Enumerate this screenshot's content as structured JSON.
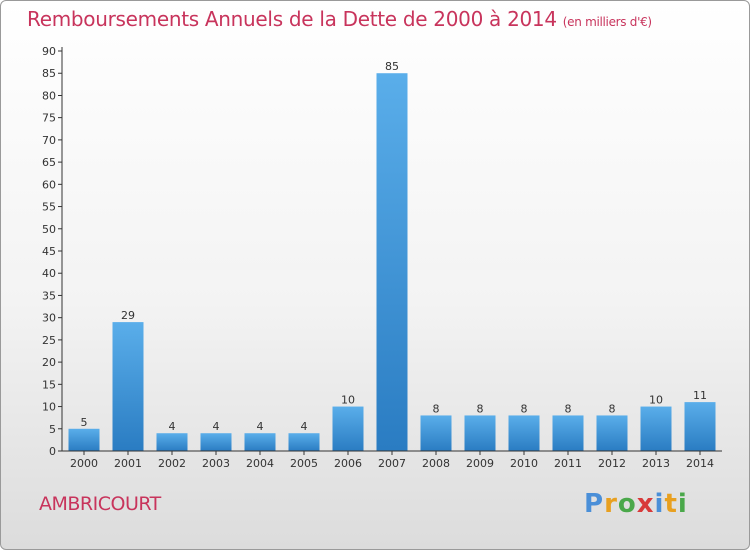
{
  "header": {
    "title": "Remboursements Annuels de la Dette de 2000 à 2014",
    "unit": "(en milliers d'€)"
  },
  "commune_name": "AMBRICOURT",
  "logo": {
    "letters": [
      "P",
      "r",
      "o",
      "x",
      "i",
      "t",
      "i"
    ],
    "colors": [
      "#4a8fd8",
      "#e8a020",
      "#4aa84a",
      "#d83a3a",
      "#4a8fd8",
      "#e8a020",
      "#4aa84a"
    ]
  },
  "colors": {
    "title": "#c8345c",
    "bar_light": "#5aaeea",
    "bar_dark": "#2a7cc2",
    "axis": "#333333"
  },
  "chart_data": {
    "type": "bar",
    "title": "Remboursements Annuels de la Dette de 2000 à 2014",
    "xlabel": "",
    "ylabel": "",
    "categories": [
      "2000",
      "2001",
      "2002",
      "2003",
      "2004",
      "2005",
      "2006",
      "2007",
      "2008",
      "2009",
      "2010",
      "2011",
      "2012",
      "2013",
      "2014"
    ],
    "values": [
      5,
      29,
      4,
      4,
      4,
      4,
      10,
      85,
      8,
      8,
      8,
      8,
      8,
      10,
      11
    ],
    "ylim": [
      0,
      90
    ],
    "yticks": [
      0,
      5,
      10,
      15,
      20,
      25,
      30,
      35,
      40,
      45,
      50,
      55,
      60,
      65,
      70,
      75,
      80,
      85,
      90
    ],
    "grid": false,
    "legend": "none"
  }
}
